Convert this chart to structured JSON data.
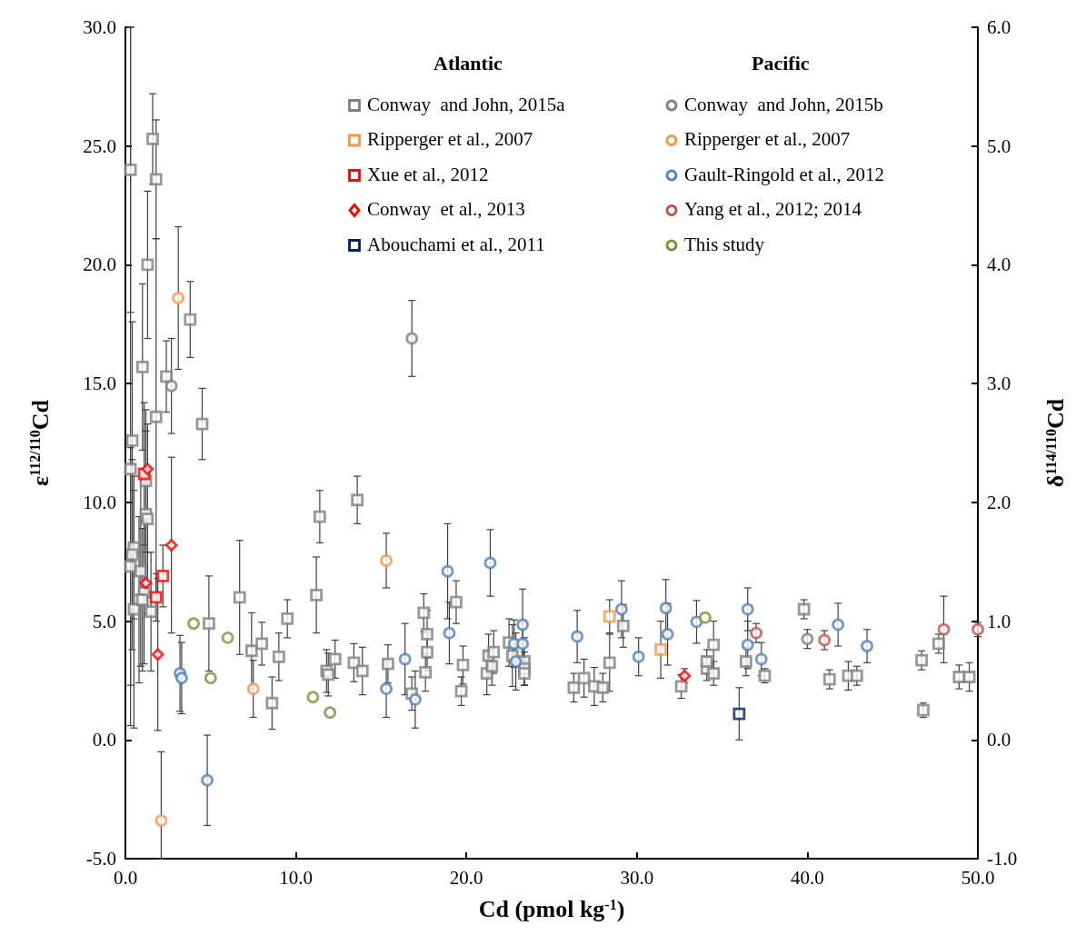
{
  "chart_data": {
    "type": "scatter",
    "xlabel": "Cd (pmol kg$^{-1}$)",
    "ylabel": "ε$^{112/110}$Cd",
    "y2label": "δ$^{114/110}$Cd",
    "annotations": [
      "Atlantic",
      "Pacific"
    ],
    "xlim": [
      0,
      50
    ],
    "xticks": [
      {
        "value": 0,
        "label": "0.0"
      },
      {
        "value": 10,
        "label": "10.0"
      },
      {
        "value": 20,
        "label": "20.0"
      },
      {
        "value": 30,
        "label": "30.0"
      },
      {
        "value": 40,
        "label": "40.0"
      },
      {
        "value": 50,
        "label": "50.0"
      }
    ],
    "ylim": [
      -5,
      30
    ],
    "yticks": [
      {
        "value": -5,
        "label": "-5.0"
      },
      {
        "value": 0,
        "label": "0.0"
      },
      {
        "value": 5,
        "label": "5.0"
      },
      {
        "value": 10,
        "label": "10.0"
      },
      {
        "value": 15,
        "label": "15.0"
      },
      {
        "value": 20,
        "label": "20.0"
      },
      {
        "value": 25,
        "label": "25.0"
      },
      {
        "value": 30,
        "label": "30.0"
      }
    ],
    "y2lim": [
      -1,
      6
    ],
    "y2ticks": [
      {
        "value": -1,
        "label": "-1.0"
      },
      {
        "value": 0,
        "label": "0.0"
      },
      {
        "value": 1,
        "label": "1.0"
      },
      {
        "value": 2,
        "label": "2.0"
      },
      {
        "value": 3,
        "label": "3.0"
      },
      {
        "value": 4,
        "label": "4.0"
      },
      {
        "value": 5,
        "label": "5.0"
      },
      {
        "value": 6,
        "label": "6.0"
      }
    ],
    "grid": false,
    "legend": "top right",
    "series": [
      {
        "name": "Conway  and John, 2015a",
        "color": "#808080",
        "marker": "square",
        "x": [
          0.3,
          1.6,
          1.8,
          1.3,
          1.0,
          3.8,
          2.4,
          1.8,
          4.5,
          0.4,
          0.3,
          1.2,
          1.2,
          1.3,
          0.5,
          0.4,
          0.3,
          0.9,
          1.1,
          0.8,
          0.5,
          1.5,
          1.0,
          4.9,
          6.7,
          7.4,
          8.0,
          8.6,
          9.0,
          9.5,
          11.4,
          11.2,
          11.8,
          11.9,
          12.3,
          13.6,
          13.4,
          13.9,
          15.4,
          16.8,
          17.6,
          17.5,
          17.7,
          17.7,
          19.4,
          19.8,
          19.7,
          21.2,
          21.3,
          21.5,
          21.6,
          22.5,
          22.7,
          23.4,
          23.4,
          23.4,
          26.3,
          26.9,
          27.5,
          28.0,
          28.4,
          29.2,
          32.6,
          34.1,
          34.1,
          34.5,
          34.5,
          36.4,
          37.5,
          39.8,
          41.3,
          42.4,
          42.9,
          46.7,
          46.8,
          47.7,
          48.9,
          49.5
        ],
        "values": [
          24.0,
          25.3,
          23.6,
          20.0,
          15.7,
          17.7,
          15.3,
          13.6,
          13.3,
          12.6,
          11.4,
          10.9,
          9.5,
          9.3,
          8.1,
          7.8,
          7.3,
          7.1,
          6.2,
          5.9,
          5.5,
          5.4,
          5.9,
          4.9,
          6.0,
          3.75,
          4.05,
          1.55,
          3.5,
          5.1,
          9.4,
          6.1,
          2.9,
          2.75,
          3.4,
          10.1,
          3.25,
          2.9,
          3.2,
          1.95,
          2.85,
          5.35,
          4.45,
          3.7,
          5.8,
          3.15,
          2.05,
          2.8,
          3.55,
          3.1,
          3.7,
          4.1,
          3.55,
          3.3,
          3.0,
          2.8,
          2.2,
          2.6,
          2.25,
          2.2,
          3.25,
          4.8,
          2.25,
          3.0,
          3.3,
          2.8,
          4.0,
          3.3,
          2.7,
          5.5,
          2.55,
          2.7,
          2.7,
          3.35,
          1.25,
          4.05,
          2.65,
          2.65
        ],
        "errors": [
          6,
          1.9,
          2.5,
          3.1,
          3.5,
          1.6,
          1.5,
          7.5,
          1.5,
          5,
          [
            0.6,
            30
          ],
          3,
          3.5,
          4,
          3,
          4,
          5,
          4,
          3,
          3.5,
          5,
          2.5,
          3,
          2,
          2.4,
          1.6,
          0.9,
          1.1,
          1,
          0.8,
          1.1,
          1.6,
          0.9,
          0.9,
          0.8,
          1,
          0.8,
          1,
          0.8,
          0.7,
          0.8,
          0.8,
          1,
          0.8,
          0.9,
          0.8,
          0.6,
          0.9,
          0.9,
          0.8,
          0.9,
          1,
          1.3,
          1,
          0.7,
          0.5,
          0.6,
          0.8,
          0.8,
          0.6,
          1.2,
          0.9,
          0.5,
          0.5,
          0.5,
          0.5,
          1,
          0.6,
          0.3,
          0.4,
          0.4,
          0.6,
          0.4,
          0.4,
          0.3,
          0.4,
          0.5,
          0.6
        ]
      },
      {
        "name": "Ripperger et al., 2007",
        "color": "#f79646",
        "marker": "square",
        "x": [
          28.4,
          31.4
        ],
        "values": [
          5.2,
          3.8
        ],
        "errors": [
          0.7,
          1.2
        ]
      },
      {
        "name": "Xue et al., 2012",
        "color": "#ff0000",
        "marker": "square",
        "x": [
          1.1,
          2.2,
          1.8
        ],
        "values": [
          11.2,
          6.9,
          6.0
        ],
        "errors": [
          3,
          1.3,
          1
        ]
      },
      {
        "name": "Conway  et al., 2013",
        "color": "#ff0000",
        "marker": "diamond",
        "x": [
          1.3,
          2.7,
          1.2,
          1.9,
          32.8
        ],
        "values": [
          11.4,
          8.2,
          6.6,
          3.6,
          2.7
        ],
        "errors": [
          null,
          3.7,
          null,
          3.2,
          0.3
        ]
      },
      {
        "name": "Abouchami et al., 2011",
        "color": "#002060",
        "marker": "square",
        "x": [
          36.0
        ],
        "values": [
          1.1
        ],
        "errors": [
          1.1
        ]
      },
      {
        "name": "Conway  and John, 2015b",
        "color": "#808080",
        "marker": "circle",
        "x": [
          2.7,
          16.8,
          40.0
        ],
        "values": [
          14.9,
          16.9,
          4.25
        ],
        "errors": [
          2,
          1.6,
          0.4
        ]
      },
      {
        "name": "Ripperger et al., 2007",
        "color": "#f79646",
        "marker": "circle",
        "x": [
          3.1,
          7.5,
          15.3,
          2.1
        ],
        "values": [
          18.6,
          2.15,
          7.55,
          -3.4
        ],
        "errors": [
          3,
          1.2,
          1.15,
          [
            -5,
            -0.5
          ]
        ]
      },
      {
        "name": "Gault-Ringold et al., 2012",
        "color": "#4f81bd",
        "marker": "circle",
        "x": [
          3.2,
          3.3,
          4.8,
          15.3,
          16.4,
          17.0,
          18.9,
          19.0,
          21.4,
          22.8,
          22.9,
          23.3,
          23.3,
          26.5,
          30.1,
          29.1,
          31.7,
          31.8,
          33.5,
          36.5,
          36.5,
          37.3,
          41.8,
          43.5
        ],
        "values": [
          2.8,
          2.6,
          -1.7,
          2.15,
          3.4,
          1.7,
          7.1,
          4.5,
          7.45,
          4.05,
          3.3,
          4.85,
          4.05,
          4.35,
          3.5,
          5.5,
          5.55,
          4.45,
          4.97,
          5.5,
          4.0,
          3.4,
          4.85,
          3.95
        ],
        "errors": [
          1.6,
          1.5,
          1.9,
          1.2,
          1.5,
          1.2,
          2,
          1.3,
          1.4,
          1,
          1.2,
          1.5,
          0.9,
          1.1,
          0.8,
          1.2,
          1.2,
          1.3,
          0.9,
          0.9,
          1,
          0.7,
          0.9,
          0.7
        ]
      },
      {
        "name": "Yang et al., 2012; 2014",
        "color": "#c0504d",
        "marker": "circle",
        "x": [
          37.0,
          41.0,
          48.0,
          50.0
        ],
        "values": [
          4.5,
          4.2,
          4.65,
          4.65
        ],
        "errors": [
          0.4,
          0.4,
          1.4,
          0.3
        ]
      },
      {
        "name": "This study",
        "color": "#77933c",
        "marker": "circle",
        "x": [
          4.0,
          5.0,
          6.0,
          11.0,
          12.0,
          34.0
        ],
        "values": [
          4.9,
          2.6,
          4.3,
          1.8,
          1.15,
          5.15
        ]
      }
    ]
  }
}
